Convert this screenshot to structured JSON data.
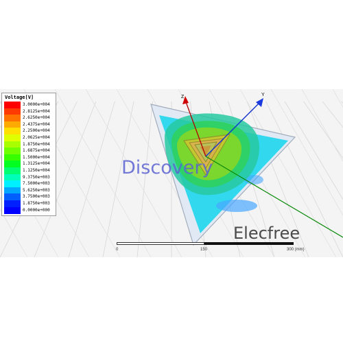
{
  "legend": {
    "title": "Voltage[V]",
    "entries": [
      {
        "label": "3.0000e+004",
        "color": "#ff0000"
      },
      {
        "label": "2.8125e+004",
        "color": "#ff3a00"
      },
      {
        "label": "2.6250e+004",
        "color": "#ff7200"
      },
      {
        "label": "2.4375e+004",
        "color": "#ffaa00"
      },
      {
        "label": "2.2500e+004",
        "color": "#ffe000"
      },
      {
        "label": "2.0625e+004",
        "color": "#e0ff00"
      },
      {
        "label": "1.8750e+004",
        "color": "#a8ff00"
      },
      {
        "label": "1.6875e+004",
        "color": "#70ff00"
      },
      {
        "label": "1.5000e+004",
        "color": "#38ff00"
      },
      {
        "label": "1.3125e+004",
        "color": "#00ff20"
      },
      {
        "label": "1.1250e+004",
        "color": "#00ff70"
      },
      {
        "label": "9.3750e+003",
        "color": "#00ffb8"
      },
      {
        "label": "7.5000e+003",
        "color": "#00f0ff"
      },
      {
        "label": "5.6250e+003",
        "color": "#00a8ff"
      },
      {
        "label": "3.7500e+003",
        "color": "#0060ff"
      },
      {
        "label": "1.8750e+003",
        "color": "#0020ff"
      },
      {
        "label": "0.0000e+000",
        "color": "#0000ff"
      }
    ]
  },
  "axes": {
    "z_label": "Z",
    "y_label": "Y"
  },
  "watermarks": {
    "discovery": "Discovery",
    "elecfree": "Elecfree"
  },
  "scale": {
    "labels": [
      "0",
      "150",
      "300 (mm)"
    ]
  }
}
